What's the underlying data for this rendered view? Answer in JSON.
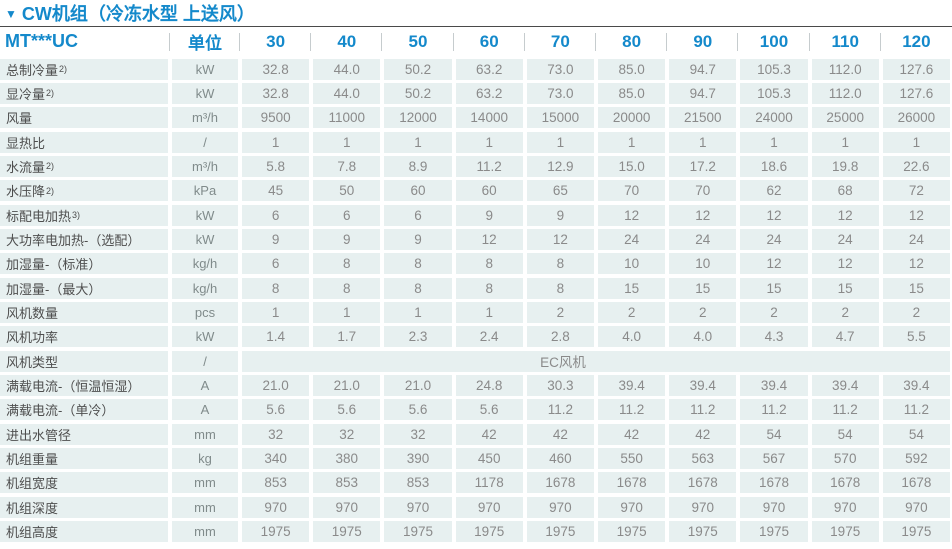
{
  "title_marker": "▼",
  "title": "CW机组（冷冻水型 上送风）",
  "colors": {
    "accent_blue": "#1489cb",
    "cell_background": "#e7f0f0",
    "value_text": "#8a8a8a",
    "label_text": "#4e4e4e",
    "divider": "#4a4a4a"
  },
  "table": {
    "model_header": "MT***UC",
    "unit_header": "单位",
    "capacity_columns": [
      "30",
      "40",
      "50",
      "60",
      "70",
      "80",
      "90",
      "100",
      "110",
      "120"
    ],
    "rows": [
      {
        "label": "总制冷量",
        "sup": "2)",
        "unit": "kW",
        "values": [
          "32.8",
          "44.0",
          "50.2",
          "63.2",
          "73.0",
          "85.0",
          "94.7",
          "105.3",
          "112.0",
          "127.6"
        ]
      },
      {
        "label": "显冷量",
        "sup": "2)",
        "unit": "kW",
        "values": [
          "32.8",
          "44.0",
          "50.2",
          "63.2",
          "73.0",
          "85.0",
          "94.7",
          "105.3",
          "112.0",
          "127.6"
        ]
      },
      {
        "label": "风量",
        "unit": "m³/h",
        "values": [
          "9500",
          "11000",
          "12000",
          "14000",
          "15000",
          "20000",
          "21500",
          "24000",
          "25000",
          "26000"
        ]
      },
      {
        "label": "显热比",
        "unit": "/",
        "values": [
          "1",
          "1",
          "1",
          "1",
          "1",
          "1",
          "1",
          "1",
          "1",
          "1"
        ]
      },
      {
        "label": "水流量",
        "sup": "2)",
        "unit": "m³/h",
        "values": [
          "5.8",
          "7.8",
          "8.9",
          "11.2",
          "12.9",
          "15.0",
          "17.2",
          "18.6",
          "19.8",
          "22.6"
        ]
      },
      {
        "label": "水压降",
        "sup": "2)",
        "unit": "kPa",
        "values": [
          "45",
          "50",
          "60",
          "60",
          "65",
          "70",
          "70",
          "62",
          "68",
          "72"
        ]
      },
      {
        "label": "标配电加热",
        "sup": "3)",
        "unit": "kW",
        "values": [
          "6",
          "6",
          "6",
          "9",
          "9",
          "12",
          "12",
          "12",
          "12",
          "12"
        ]
      },
      {
        "label": "大功率电加热-（选配）",
        "unit": "kW",
        "values": [
          "9",
          "9",
          "9",
          "12",
          "12",
          "24",
          "24",
          "24",
          "24",
          "24"
        ]
      },
      {
        "label": "加湿量-（标准）",
        "unit": "kg/h",
        "values": [
          "6",
          "8",
          "8",
          "8",
          "8",
          "10",
          "10",
          "12",
          "12",
          "12"
        ]
      },
      {
        "label": "加湿量-（最大）",
        "unit": "kg/h",
        "values": [
          "8",
          "8",
          "8",
          "8",
          "8",
          "15",
          "15",
          "15",
          "15",
          "15"
        ]
      },
      {
        "label": "风机数量",
        "unit": "pcs",
        "values": [
          "1",
          "1",
          "1",
          "1",
          "2",
          "2",
          "2",
          "2",
          "2",
          "2"
        ]
      },
      {
        "label": "风机功率",
        "unit": "kW",
        "values": [
          "1.4",
          "1.7",
          "2.3",
          "2.4",
          "2.8",
          "4.0",
          "4.0",
          "4.3",
          "4.7",
          "5.5"
        ]
      },
      {
        "label": "风机类型",
        "unit": "/",
        "merged": "EC风机"
      },
      {
        "label": "满载电流-（恒温恒湿）",
        "unit": "A",
        "values": [
          "21.0",
          "21.0",
          "21.0",
          "24.8",
          "30.3",
          "39.4",
          "39.4",
          "39.4",
          "39.4",
          "39.4"
        ]
      },
      {
        "label": "满载电流-（单冷）",
        "unit": "A",
        "values": [
          "5.6",
          "5.6",
          "5.6",
          "5.6",
          "11.2",
          "11.2",
          "11.2",
          "11.2",
          "11.2",
          "11.2"
        ]
      },
      {
        "label": "进出水管径",
        "unit": "mm",
        "values": [
          "32",
          "32",
          "32",
          "42",
          "42",
          "42",
          "42",
          "54",
          "54",
          "54"
        ]
      },
      {
        "label": "机组重量",
        "unit": "kg",
        "values": [
          "340",
          "380",
          "390",
          "450",
          "460",
          "550",
          "563",
          "567",
          "570",
          "592"
        ]
      },
      {
        "label": "机组宽度",
        "unit": "mm",
        "values": [
          "853",
          "853",
          "853",
          "1178",
          "1678",
          "1678",
          "1678",
          "1678",
          "1678",
          "1678"
        ]
      },
      {
        "label": "机组深度",
        "unit": "mm",
        "values": [
          "970",
          "970",
          "970",
          "970",
          "970",
          "970",
          "970",
          "970",
          "970",
          "970"
        ]
      },
      {
        "label": "机组高度",
        "unit": "mm",
        "values": [
          "1975",
          "1975",
          "1975",
          "1975",
          "1975",
          "1975",
          "1975",
          "1975",
          "1975",
          "1975"
        ]
      }
    ]
  }
}
